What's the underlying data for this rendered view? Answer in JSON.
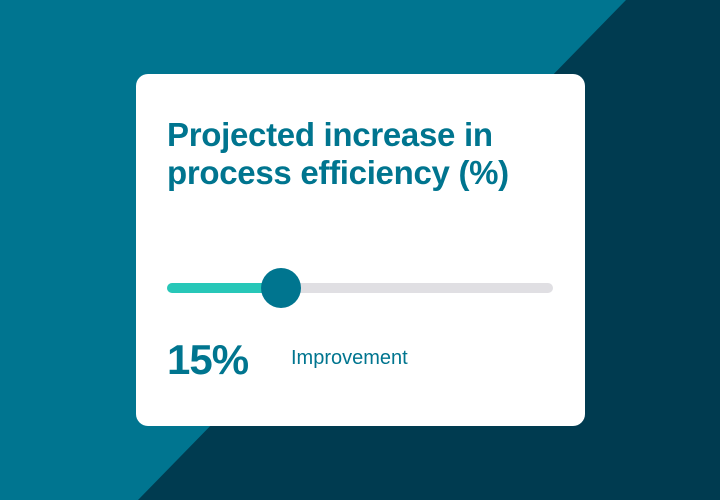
{
  "card": {
    "title": "Projected increase in process efficiency (%)",
    "slider_fraction": 0.295,
    "value": "15%",
    "value_label": "Improvement"
  },
  "colors": {
    "background": "#007590",
    "background_dark": "#003b50",
    "accent": "#00758f",
    "fill": "#27c7b8",
    "track": "#e0dfe3"
  }
}
